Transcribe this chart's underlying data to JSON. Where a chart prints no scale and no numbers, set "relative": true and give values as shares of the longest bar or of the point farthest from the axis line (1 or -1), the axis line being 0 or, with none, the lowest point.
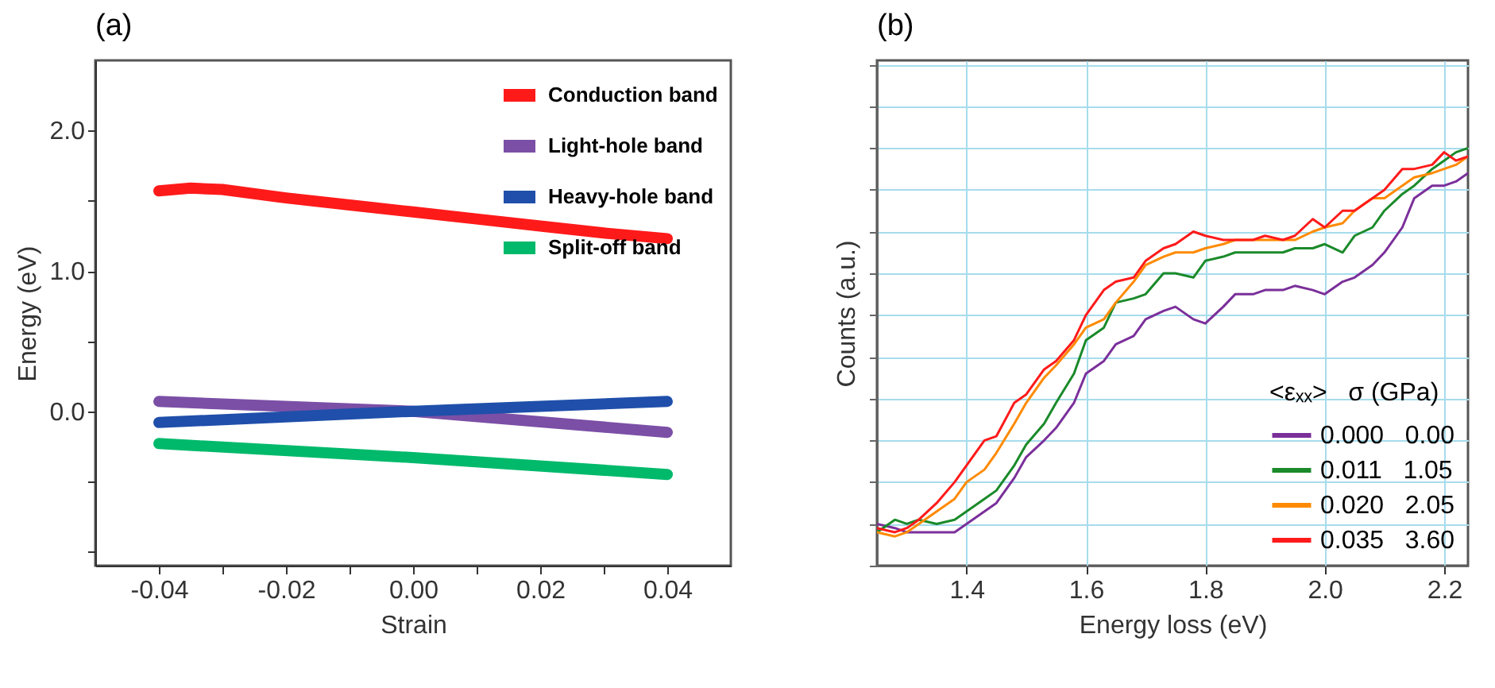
{
  "chart_data": [
    {
      "type": "line",
      "title": "(a)",
      "xlabel": "Strain",
      "ylabel": "Energy (eV)",
      "x": [
        -0.04,
        -0.035,
        -0.03,
        -0.02,
        -0.01,
        0,
        0.01,
        0.02,
        0.03,
        0.04
      ],
      "series": [
        {
          "name": "Conduction band",
          "color": "#ff1a1a",
          "values": [
            1.57,
            1.59,
            1.58,
            1.52,
            1.47,
            1.42,
            1.37,
            1.32,
            1.27,
            1.23
          ]
        },
        {
          "name": "Light-hole band",
          "color": "#7b4fa6",
          "x": [
            -0.04,
            0,
            0.04
          ],
          "values": [
            0.07,
            0,
            -0.15
          ]
        },
        {
          "name": "Heavy-hole band",
          "color": "#1f4faa",
          "x": [
            -0.04,
            0,
            0.04
          ],
          "values": [
            -0.08,
            0,
            0.07
          ]
        },
        {
          "name": "Split-off band",
          "color": "#00b96b",
          "x": [
            -0.04,
            0,
            0.04
          ],
          "values": [
            -0.23,
            -0.33,
            -0.45
          ]
        }
      ],
      "xlim": [
        -0.05,
        0.05
      ],
      "xticks": [
        {
          "value": -0.04,
          "label": "-0.04"
        },
        {
          "value": -0.03,
          "label": null
        },
        {
          "value": -0.02,
          "label": "-0.02"
        },
        {
          "value": -0.01,
          "label": null
        },
        {
          "value": 0,
          "label": "0.00"
        },
        {
          "value": 0.01,
          "label": null
        },
        {
          "value": 0.02,
          "label": "0.02"
        },
        {
          "value": 0.03,
          "label": null
        },
        {
          "value": 0.04,
          "label": "0.04"
        }
      ],
      "ylim": [
        -1.1,
        2.5
      ],
      "yticks": [
        {
          "value": -1,
          "label": null
        },
        {
          "value": -0.5,
          "label": null
        },
        {
          "value": 0,
          "label": "0.0"
        },
        {
          "value": 0.5,
          "label": null
        },
        {
          "value": 1,
          "label": "1.0"
        },
        {
          "value": 1.5,
          "label": null
        },
        {
          "value": 2,
          "label": "2.0"
        }
      ],
      "legend": "top right",
      "grid": false
    },
    {
      "type": "line",
      "title": "(b)",
      "xlabel": "Energy loss (eV)",
      "ylabel": "Counts (a.u.)",
      "legend_title": "<εₓₓ>   σ (GPa)",
      "relative": true,
      "x": [
        1.25,
        1.28,
        1.3,
        1.32,
        1.35,
        1.38,
        1.4,
        1.43,
        1.45,
        1.48,
        1.5,
        1.53,
        1.55,
        1.58,
        1.6,
        1.63,
        1.65,
        1.68,
        1.7,
        1.73,
        1.75,
        1.78,
        1.8,
        1.83,
        1.85,
        1.88,
        1.9,
        1.93,
        1.95,
        1.98,
        2.0,
        2.03,
        2.05,
        2.08,
        2.1,
        2.13,
        2.15,
        2.18,
        2.2,
        2.22,
        2.24
      ],
      "series": [
        {
          "name": "0.000   0.00",
          "color": "#7a2f9a",
          "values": [
            0.1,
            0.09,
            0.08,
            0.08,
            0.08,
            0.08,
            0.1,
            0.13,
            0.15,
            0.21,
            0.26,
            0.3,
            0.33,
            0.39,
            0.46,
            0.49,
            0.53,
            0.55,
            0.59,
            0.61,
            0.62,
            0.59,
            0.58,
            0.62,
            0.65,
            0.65,
            0.66,
            0.66,
            0.67,
            0.66,
            0.65,
            0.68,
            0.69,
            0.72,
            0.75,
            0.81,
            0.88,
            0.91,
            0.91,
            0.92,
            0.94
          ]
        },
        {
          "name": "0.011   1.05",
          "color": "#1a8a2a",
          "values": [
            0.08,
            0.11,
            0.1,
            0.11,
            0.1,
            0.11,
            0.13,
            0.16,
            0.18,
            0.24,
            0.29,
            0.34,
            0.39,
            0.46,
            0.54,
            0.57,
            0.63,
            0.64,
            0.65,
            0.7,
            0.7,
            0.69,
            0.73,
            0.74,
            0.75,
            0.75,
            0.75,
            0.75,
            0.76,
            0.76,
            0.77,
            0.75,
            0.79,
            0.81,
            0.85,
            0.89,
            0.91,
            0.95,
            0.97,
            0.99,
            1.0
          ]
        },
        {
          "name": "0.020   2.05",
          "color": "#ff8a00",
          "values": [
            0.08,
            0.07,
            0.08,
            0.1,
            0.13,
            0.16,
            0.2,
            0.23,
            0.27,
            0.34,
            0.39,
            0.45,
            0.48,
            0.53,
            0.57,
            0.59,
            0.63,
            0.68,
            0.72,
            0.74,
            0.75,
            0.75,
            0.76,
            0.77,
            0.78,
            0.78,
            0.78,
            0.78,
            0.78,
            0.8,
            0.81,
            0.82,
            0.85,
            0.88,
            0.88,
            0.91,
            0.93,
            0.94,
            0.95,
            0.96,
            0.98
          ]
        },
        {
          "name": "0.035   3.60",
          "color": "#ff1a1a",
          "values": [
            0.09,
            0.08,
            0.09,
            0.11,
            0.15,
            0.2,
            0.24,
            0.3,
            0.31,
            0.39,
            0.41,
            0.47,
            0.49,
            0.54,
            0.6,
            0.66,
            0.68,
            0.69,
            0.73,
            0.76,
            0.77,
            0.8,
            0.79,
            0.78,
            0.78,
            0.78,
            0.79,
            0.78,
            0.79,
            0.83,
            0.81,
            0.85,
            0.85,
            0.88,
            0.9,
            0.95,
            0.95,
            0.96,
            0.99,
            0.97,
            0.98
          ]
        }
      ],
      "xlim": [
        1.25,
        2.24
      ],
      "xticks": [
        {
          "value": 1.4,
          "label": "1.4"
        },
        {
          "value": 1.6,
          "label": "1.6"
        },
        {
          "value": 1.8,
          "label": "1.8"
        },
        {
          "value": 2.0,
          "label": "2.0"
        },
        {
          "value": 2.2,
          "label": "2.2"
        }
      ],
      "legend": "bottom right",
      "grid": true
    }
  ]
}
